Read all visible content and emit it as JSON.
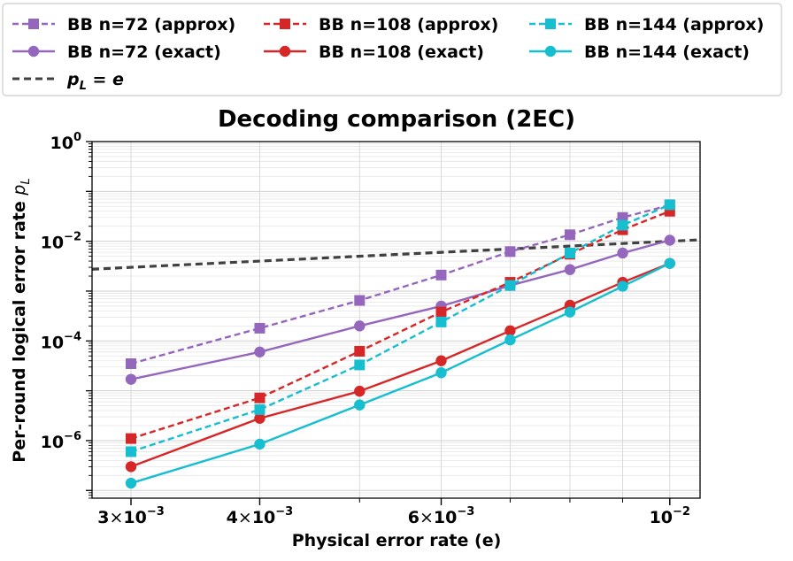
{
  "chart_data": {
    "type": "line",
    "title": "Decoding comparison (2EC)",
    "xlabel": "Physical error rate (e)",
    "ylabel_main": "Per-round logical error rate ",
    "ylabel_symbol": "p",
    "ylabel_subscript": "L",
    "xscale": "log",
    "yscale": "log",
    "xlim": [
      0.00275,
      0.0107
    ],
    "ylim": [
      7e-08,
      1.0
    ],
    "grid": true,
    "legend_position": "top",
    "x": [
      0.003,
      0.004,
      0.005,
      0.006,
      0.007,
      0.008,
      0.009,
      0.01
    ],
    "x_ticks": [
      {
        "value": 0.003,
        "mantissa": "3",
        "times": "×",
        "base": "10",
        "exponent": "−3"
      },
      {
        "value": 0.004,
        "mantissa": "4",
        "times": "×",
        "base": "10",
        "exponent": "−3"
      },
      {
        "value": 0.006,
        "mantissa": "6",
        "times": "×",
        "base": "10",
        "exponent": "−3"
      },
      {
        "value": 0.01,
        "mantissa": "",
        "times": "",
        "base": "10",
        "exponent": "−2"
      }
    ],
    "y_ticks": [
      {
        "value": 1e-06,
        "base": "10",
        "exponent": "−6"
      },
      {
        "value": 0.0001,
        "base": "10",
        "exponent": "−4"
      },
      {
        "value": 0.01,
        "base": "10",
        "exponent": "−2"
      },
      {
        "value": 1,
        "base": "10",
        "exponent": "0"
      }
    ],
    "series": [
      {
        "name": "BB n=72 (approx)",
        "color": "#9467bd",
        "dash": true,
        "marker": "square",
        "values": [
          3.5e-05,
          0.00018,
          0.00065,
          0.0021,
          0.0062,
          0.0135,
          0.03,
          0.053
        ]
      },
      {
        "name": "BB n=72 (exact)",
        "color": "#9467bd",
        "dash": false,
        "marker": "circle",
        "values": [
          1.7e-05,
          6e-05,
          0.0002,
          0.0005,
          0.0013,
          0.0027,
          0.0058,
          0.0105
        ]
      },
      {
        "name": "BB n=108 (approx)",
        "color": "#d62728",
        "dash": true,
        "marker": "square",
        "values": [
          1.1e-06,
          7.2e-06,
          6.2e-05,
          0.00038,
          0.0015,
          0.0055,
          0.017,
          0.04
        ]
      },
      {
        "name": "BB n=108 (exact)",
        "color": "#d62728",
        "dash": false,
        "marker": "circle",
        "values": [
          3e-07,
          2.8e-06,
          9.8e-06,
          4e-05,
          0.00016,
          0.00052,
          0.0015,
          0.0036
        ]
      },
      {
        "name": "BB n=144 (approx)",
        "color": "#17becf",
        "dash": true,
        "marker": "square",
        "values": [
          6e-07,
          4.2e-06,
          3.3e-05,
          0.00024,
          0.0013,
          0.0058,
          0.021,
          0.054
        ]
      },
      {
        "name": "BB n=144 (exact)",
        "color": "#17becf",
        "dash": false,
        "marker": "circle",
        "values": [
          1.4e-07,
          8.5e-07,
          5.2e-06,
          2.3e-05,
          0.000105,
          0.00038,
          0.00125,
          0.0036
        ]
      }
    ],
    "reference_line": {
      "label_symbol": "p",
      "label_subscript": "L",
      "label_rest": " = e",
      "color": "#404040",
      "dash": true
    }
  }
}
